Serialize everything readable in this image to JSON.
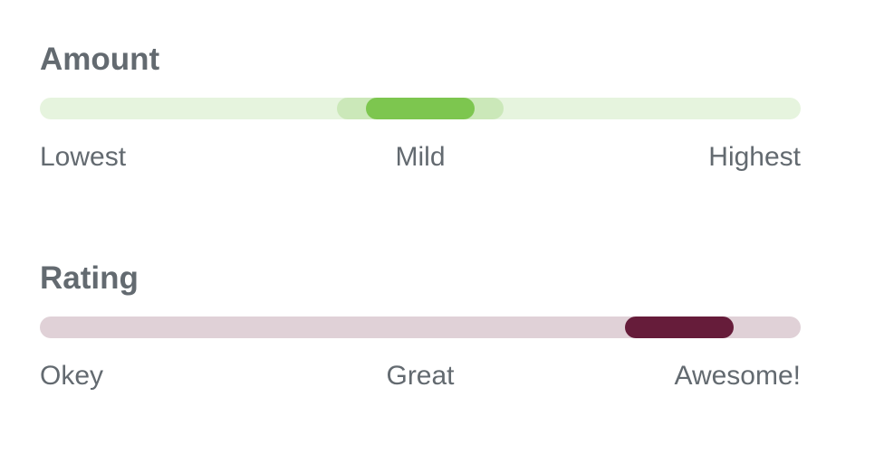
{
  "amount": {
    "title": "Amount",
    "scale_labels": [
      "Lowest",
      "Mild",
      "Highest"
    ],
    "value": 0.5,
    "active_range": [
      0.39,
      0.61
    ],
    "colors": {
      "track": "#e6f4de",
      "range": "#cbe8b9",
      "thumb": "#7dc64f"
    }
  },
  "rating": {
    "title": "Rating",
    "scale_labels": [
      "Okey",
      "Great",
      "Awesome!"
    ],
    "value": 0.84,
    "colors": {
      "track": "#e0d1d7",
      "thumb": "#661c3a"
    }
  }
}
